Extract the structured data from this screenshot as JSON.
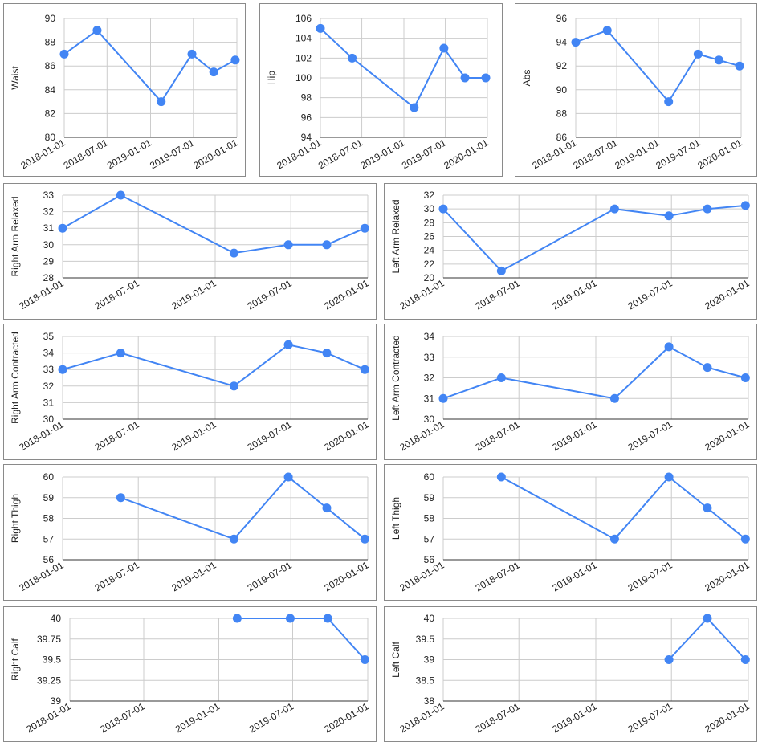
{
  "style": {
    "line_color": "#4285f4",
    "grid_color": "#cccccc",
    "axis_color": "#333333"
  },
  "chart_data": [
    {
      "type": "line",
      "ylabel": "Waist",
      "x": [
        "2018-01-01",
        "2018-05-20",
        "2019-02-15",
        "2019-06-25",
        "2019-09-25",
        "2019-12-25"
      ],
      "values": [
        87,
        89,
        83,
        87,
        85.5,
        86.5
      ],
      "ylim": [
        80,
        90
      ],
      "yticks": [
        "80",
        "82",
        "84",
        "86",
        "88",
        "90"
      ],
      "xticks": [
        "2018-01-01",
        "2018-07-01",
        "2019-01-01",
        "2019-07-01",
        "2020-01-01"
      ],
      "grid": true
    },
    {
      "type": "line",
      "ylabel": "Hip",
      "x": [
        "2018-01-01",
        "2018-05-20",
        "2019-02-15",
        "2019-06-25",
        "2019-09-25",
        "2019-12-25"
      ],
      "values": [
        105,
        102,
        97,
        103,
        100,
        100
      ],
      "ylim": [
        94,
        106
      ],
      "yticks": [
        "94",
        "96",
        "98",
        "100",
        "102",
        "104",
        "106"
      ],
      "xticks": [
        "2018-01-01",
        "2018-07-01",
        "2019-01-01",
        "2019-07-01",
        "2020-01-01"
      ],
      "grid": true
    },
    {
      "type": "line",
      "ylabel": "Abs",
      "x": [
        "2018-01-01",
        "2018-05-20",
        "2019-02-15",
        "2019-06-25",
        "2019-09-25",
        "2019-12-25"
      ],
      "values": [
        94,
        95,
        89,
        93,
        92.5,
        92
      ],
      "ylim": [
        86,
        96
      ],
      "yticks": [
        "86",
        "88",
        "90",
        "92",
        "94",
        "96"
      ],
      "xticks": [
        "2018-01-01",
        "2018-07-01",
        "2019-01-01",
        "2019-07-01",
        "2020-01-01"
      ],
      "grid": true
    },
    {
      "type": "line",
      "ylabel": "Right Arm Relaxed",
      "x": [
        "2018-01-01",
        "2018-05-20",
        "2019-02-15",
        "2019-06-25",
        "2019-09-25",
        "2019-12-25"
      ],
      "values": [
        31,
        33,
        29.5,
        30,
        30,
        31
      ],
      "ylim": [
        28,
        33
      ],
      "yticks": [
        "28",
        "29",
        "30",
        "31",
        "32",
        "33"
      ],
      "xticks": [
        "2018-01-01",
        "2018-07-01",
        "2019-01-01",
        "2019-07-01",
        "2020-01-01"
      ],
      "grid": true
    },
    {
      "type": "line",
      "ylabel": "Left Arm Relaxed",
      "x": [
        "2018-01-01",
        "2018-05-20",
        "2019-02-15",
        "2019-06-25",
        "2019-09-25",
        "2019-12-25"
      ],
      "values": [
        30,
        21,
        30,
        29,
        30,
        30.5
      ],
      "ylim": [
        20,
        32
      ],
      "yticks": [
        "20",
        "22",
        "24",
        "26",
        "28",
        "30",
        "32"
      ],
      "xticks": [
        "2018-01-01",
        "2018-07-01",
        "2019-01-01",
        "2019-07-01",
        "2020-01-01"
      ],
      "grid": true
    },
    {
      "type": "line",
      "ylabel": "Right Arm Contracted",
      "x": [
        "2018-01-01",
        "2018-05-20",
        "2019-02-15",
        "2019-06-25",
        "2019-09-25",
        "2019-12-25"
      ],
      "values": [
        33,
        34,
        32,
        34.5,
        34,
        33
      ],
      "ylim": [
        30,
        35
      ],
      "yticks": [
        "30",
        "31",
        "32",
        "33",
        "34",
        "35"
      ],
      "xticks": [
        "2018-01-01",
        "2018-07-01",
        "2019-01-01",
        "2019-07-01",
        "2020-01-01"
      ],
      "grid": true
    },
    {
      "type": "line",
      "ylabel": "Left Arm Contracted",
      "x": [
        "2018-01-01",
        "2018-05-20",
        "2019-02-15",
        "2019-06-25",
        "2019-09-25",
        "2019-12-25"
      ],
      "values": [
        31,
        32,
        31,
        33.5,
        32.5,
        32
      ],
      "ylim": [
        30,
        34
      ],
      "yticks": [
        "30",
        "31",
        "32",
        "33",
        "34"
      ],
      "xticks": [
        "2018-01-01",
        "2018-07-01",
        "2019-01-01",
        "2019-07-01",
        "2020-01-01"
      ],
      "grid": true
    },
    {
      "type": "line",
      "ylabel": "Right Thigh",
      "x": [
        "2018-05-20",
        "2019-02-15",
        "2019-06-25",
        "2019-09-25",
        "2019-12-25"
      ],
      "values": [
        59,
        57,
        60,
        58.5,
        57
      ],
      "ylim": [
        56,
        60
      ],
      "yticks": [
        "56",
        "57",
        "58",
        "59",
        "60"
      ],
      "xticks": [
        "2018-01-01",
        "2018-07-01",
        "2019-01-01",
        "2019-07-01",
        "2020-01-01"
      ],
      "grid": true
    },
    {
      "type": "line",
      "ylabel": "Left Thigh",
      "x": [
        "2018-05-20",
        "2019-02-15",
        "2019-06-25",
        "2019-09-25",
        "2019-12-25"
      ],
      "values": [
        60,
        57,
        60,
        58.5,
        57
      ],
      "ylim": [
        56,
        60
      ],
      "yticks": [
        "56",
        "57",
        "58",
        "59",
        "60"
      ],
      "xticks": [
        "2018-01-01",
        "2018-07-01",
        "2019-01-01",
        "2019-07-01",
        "2020-01-01"
      ],
      "grid": true
    },
    {
      "type": "line",
      "ylabel": "Right Calf",
      "x": [
        "2019-02-15",
        "2019-06-25",
        "2019-09-25",
        "2019-12-25"
      ],
      "values": [
        40,
        40,
        40,
        39.5
      ],
      "ylim": [
        39,
        40
      ],
      "yticks": [
        "39",
        "39.25",
        "39.5",
        "39.75",
        "40"
      ],
      "xticks": [
        "2018-01-01",
        "2018-07-01",
        "2019-01-01",
        "2019-07-01",
        "2020-01-01"
      ],
      "grid": true
    },
    {
      "type": "line",
      "ylabel": "Left Calf",
      "x": [
        "2019-06-25",
        "2019-09-25",
        "2019-12-25"
      ],
      "values": [
        39,
        40,
        39
      ],
      "ylim": [
        38,
        40
      ],
      "yticks": [
        "38",
        "38.5",
        "39",
        "39.5",
        "40"
      ],
      "xticks": [
        "2018-01-01",
        "2018-07-01",
        "2019-01-01",
        "2019-07-01",
        "2020-01-01"
      ],
      "grid": true
    }
  ]
}
